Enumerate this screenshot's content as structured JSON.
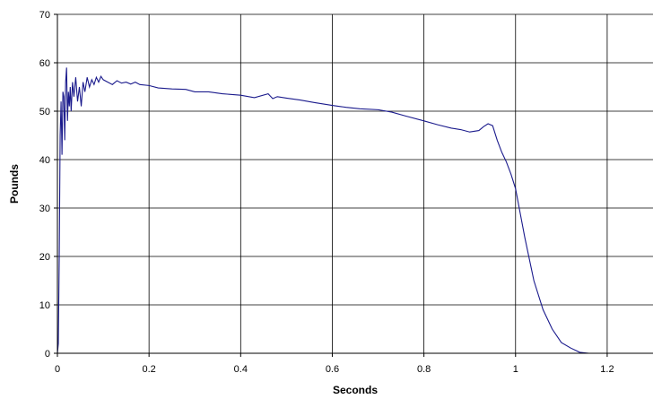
{
  "chart_data": {
    "type": "line",
    "title": "",
    "xlabel": "Seconds",
    "ylabel": "Pounds",
    "xlim": [
      0,
      1.3
    ],
    "ylim": [
      0,
      70
    ],
    "x_ticks": [
      0,
      0.2,
      0.4,
      0.6,
      0.8,
      1,
      1.2
    ],
    "x_tick_labels": [
      "0",
      "0.2",
      "0.4",
      "0.6",
      "0.8",
      "1",
      "1.2"
    ],
    "y_ticks": [
      0,
      10,
      20,
      30,
      40,
      50,
      60,
      70
    ],
    "y_tick_labels": [
      "0",
      "10",
      "20",
      "30",
      "40",
      "50",
      "60",
      "70"
    ],
    "grid": true,
    "legend": "none",
    "series": [
      {
        "color": "#1a1a8c",
        "x": [
          0,
          0.002,
          0.004,
          0.006,
          0.008,
          0.01,
          0.012,
          0.014,
          0.016,
          0.018,
          0.02,
          0.022,
          0.024,
          0.026,
          0.028,
          0.03,
          0.033,
          0.036,
          0.04,
          0.044,
          0.048,
          0.052,
          0.056,
          0.06,
          0.065,
          0.07,
          0.075,
          0.08,
          0.085,
          0.09,
          0.095,
          0.1,
          0.11,
          0.12,
          0.13,
          0.14,
          0.15,
          0.16,
          0.17,
          0.18,
          0.2,
          0.22,
          0.25,
          0.28,
          0.3,
          0.33,
          0.36,
          0.4,
          0.43,
          0.46,
          0.47,
          0.48,
          0.5,
          0.53,
          0.56,
          0.6,
          0.63,
          0.66,
          0.7,
          0.73,
          0.76,
          0.8,
          0.83,
          0.86,
          0.88,
          0.9,
          0.92,
          0.93,
          0.94,
          0.95,
          0.955,
          0.96,
          0.97,
          0.98,
          0.99,
          1.0,
          1.02,
          1.04,
          1.06,
          1.08,
          1.1,
          1.12,
          1.14,
          1.16,
          1.165,
          1.18,
          1.2,
          1.25,
          1.3
        ],
        "y": [
          0,
          2,
          20,
          45,
          52,
          41,
          54,
          53,
          44,
          56,
          59,
          48,
          54,
          51,
          55,
          50,
          56,
          53,
          57,
          52,
          55,
          51,
          56,
          54,
          57,
          55,
          56.5,
          55.5,
          57,
          56,
          57.2,
          56.5,
          56,
          55.5,
          56.3,
          55.8,
          56,
          55.6,
          56,
          55.5,
          55.3,
          54.8,
          54.6,
          54.5,
          54,
          54,
          53.6,
          53.3,
          52.8,
          53.6,
          52.6,
          53,
          52.7,
          52.3,
          51.8,
          51.2,
          50.8,
          50.5,
          50.3,
          49.8,
          49,
          48,
          47.2,
          46.5,
          46.2,
          45.7,
          46,
          46.8,
          47.4,
          47,
          45.5,
          44,
          41.5,
          39.5,
          37,
          34,
          24,
          15,
          9,
          5,
          2.2,
          1.1,
          0.2,
          0,
          0,
          0,
          0,
          0,
          0
        ]
      }
    ]
  }
}
